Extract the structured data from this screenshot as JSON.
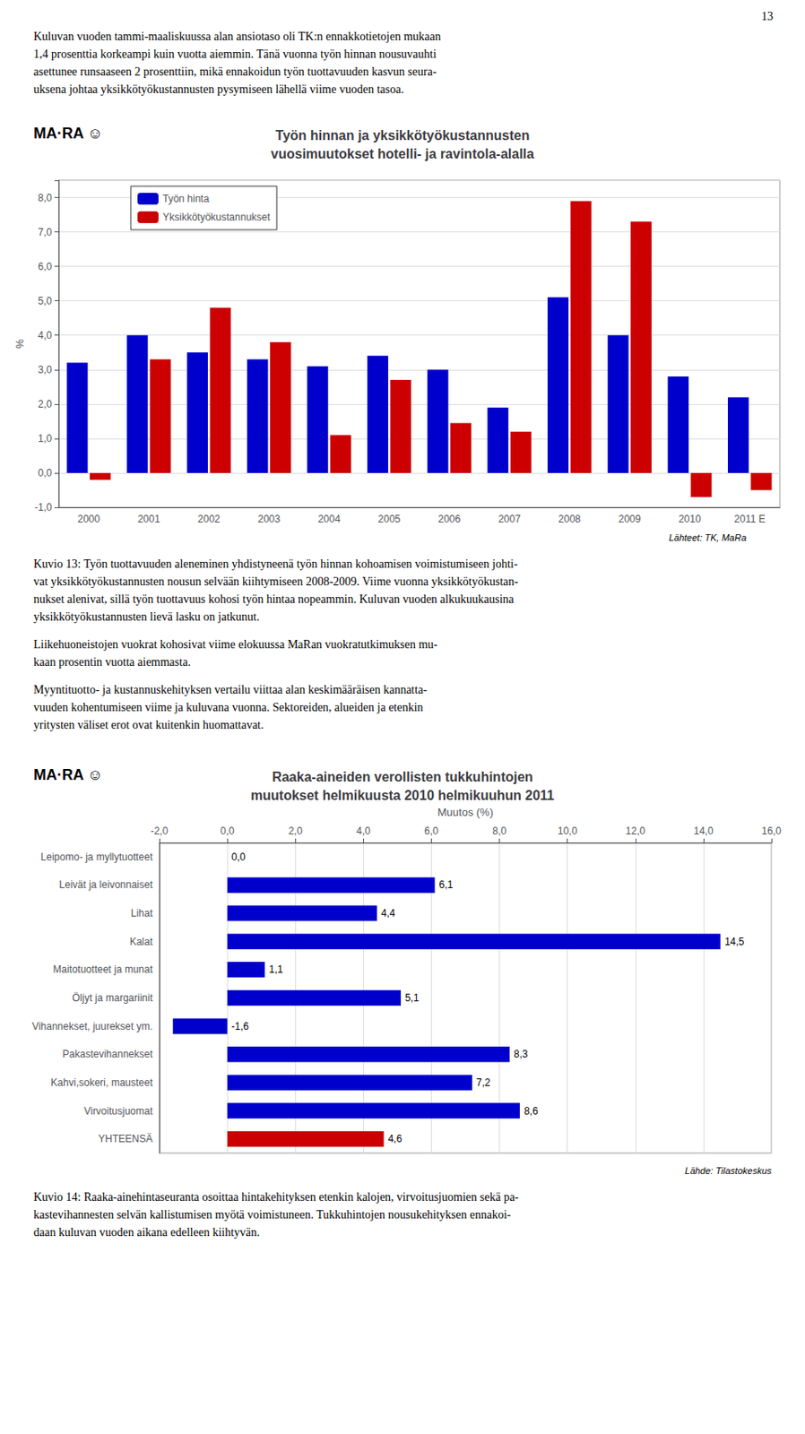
{
  "chart_data": [
    {
      "type": "bar",
      "title": "Työn hinnan ja yksikkötyökustannusten\nvuosimuutokset hotelli- ja ravintola-alalla",
      "categories": [
        "2000",
        "2001",
        "2002",
        "2003",
        "2004",
        "2005",
        "2006",
        "2007",
        "2008",
        "2009",
        "2010",
        "2011 E"
      ],
      "series": [
        {
          "name": "Työn hinta",
          "color": "#0000CC",
          "values": [
            3.2,
            4.0,
            3.5,
            3.3,
            3.1,
            3.4,
            3.0,
            1.9,
            5.1,
            4.0,
            2.8,
            2.2
          ]
        },
        {
          "name": "Yksikkötyökustannukset",
          "color": "#CC0000",
          "values": [
            -0.2,
            3.3,
            4.8,
            3.8,
            1.1,
            2.7,
            1.45,
            1.2,
            7.9,
            7.3,
            -0.7,
            -0.5
          ]
        }
      ],
      "ylabel": "%",
      "ylim": [
        -1.0,
        8.5
      ],
      "yticks": [
        {
          "value": -1.0,
          "label": "-1,0"
        },
        {
          "value": 0.0,
          "label": "0,0"
        },
        {
          "value": 1.0,
          "label": "1,0"
        },
        {
          "value": 2.0,
          "label": "2,0"
        },
        {
          "value": 3.0,
          "label": "3,0"
        },
        {
          "value": 4.0,
          "label": "4,0"
        },
        {
          "value": 5.0,
          "label": "5,0"
        },
        {
          "value": 6.0,
          "label": "6,0"
        },
        {
          "value": 7.0,
          "label": "7,0"
        },
        {
          "value": 8.0,
          "label": "8,0"
        }
      ],
      "grid": true,
      "legend": "upper left",
      "annotations": [
        "13",
        [
          "Kuluvan vuoden tammi-maaliskuussa alan ansiotaso oli TK:n ennakkotietojen mukaan",
          "1,4 prosenttia korkeampi kuin vuotta aiemmin. Tänä vuonna työn hinnan nousuvauhti",
          "asettunee runsaaseen 2 prosenttiin, mikä ennakoidun työn tuottavuuden kasvun seura-",
          "uksena johtaa yksikkötyökustannusten pysymiseen lähellä viime vuoden tasoa."
        ],
        "MA·RA ☺",
        "Lähteet: TK, MaRa",
        [
          "Kuvio 13: Työn tuottavuuden aleneminen yhdistyneenä työn hinnan kohoamisen voimistumiseen johti-",
          "vat yksikkötyökustannusten nousun selvään kiihtymiseen 2008-2009. Viime vuonna yksikkötyökustan-",
          "nukset alenivat, sillä työn tuottavuus kohosi työn hintaa nopeammin. Kuluvan vuoden alkukuukausina",
          "yksikkötyökustannusten lievä lasku on jatkunut."
        ],
        [
          "Liikehuoneistojen vuokrat kohosivat viime elokuussa MaRan vuokratutkimuksen mu-",
          "kaan prosentin vuotta aiemmasta."
        ],
        [
          "Myyntituotto- ja kustannuskehityksen vertailu viittaa alan keskimääräisen kannatta-",
          "vuuden kohentumiseen viime ja kuluvana vuonna. Sektoreiden, alueiden ja etenkin",
          "yritysten väliset erot ovat kuitenkin huomattavat."
        ]
      ]
    },
    {
      "type": "bar",
      "orientation": "horizontal",
      "title": "Raaka-aineiden verollisten tukkuhintojen\nmuutokset helmikuusta 2010 helmikuuhun 2011",
      "categories": [
        "Leipomo- ja myllytuotteet",
        "Leivät ja leivonnaiset",
        "Lihat",
        "Kalat",
        "Maitotuotteet ja munat",
        "Öljyt ja margariinit",
        "Vihannekset, juurekset ym.",
        "Pakastevihannekset",
        "Kahvi,sokeri, mausteet",
        "Virvoitusjuomat",
        "YHTEENSÄ"
      ],
      "values": [
        0.0,
        6.1,
        4.4,
        14.5,
        1.1,
        5.1,
        -1.6,
        8.3,
        7.2,
        8.6,
        4.6
      ],
      "colors": [
        "#0000CC",
        "#0000CC",
        "#0000CC",
        "#0000CC",
        "#0000CC",
        "#0000CC",
        "#0000CC",
        "#0000CC",
        "#0000CC",
        "#0000CC",
        "#CC0000"
      ],
      "data_labels": true,
      "value_labels": [
        "0,0",
        "6,1",
        "4,4",
        "14,5",
        "1,1",
        "5,1",
        "-1,6",
        "8,3",
        "7,2",
        "8,6",
        "4,6"
      ],
      "xlabel": "Muutos (%)",
      "xlim": [
        -2.0,
        16.0
      ],
      "xticks": [
        {
          "value": -2.0,
          "label": "-2,0"
        },
        {
          "value": 0.0,
          "label": "0,0"
        },
        {
          "value": 2.0,
          "label": "2,0"
        },
        {
          "value": 4.0,
          "label": "4,0"
        },
        {
          "value": 6.0,
          "label": "6,0"
        },
        {
          "value": 8.0,
          "label": "8,0"
        },
        {
          "value": 10.0,
          "label": "10,0"
        },
        {
          "value": 12.0,
          "label": "12,0"
        },
        {
          "value": 14.0,
          "label": "14,0"
        },
        {
          "value": 16.0,
          "label": "16,0"
        }
      ],
      "grid": true,
      "annotations": [
        "MA·RA ☺",
        "Lähde: Tilastokeskus",
        [
          "Kuvio 14: Raaka-ainehintaseuranta osoittaa hintakehityksen etenkin kalojen, virvoitusjuomien sekä pa-",
          "kastevihannesten selvän kallistumisen myötä voimistuneen. Tukkuhintojen nousukehityksen ennakoi-",
          "daan kuluvan vuoden aikana edelleen kiihtyvän."
        ]
      ]
    }
  ]
}
